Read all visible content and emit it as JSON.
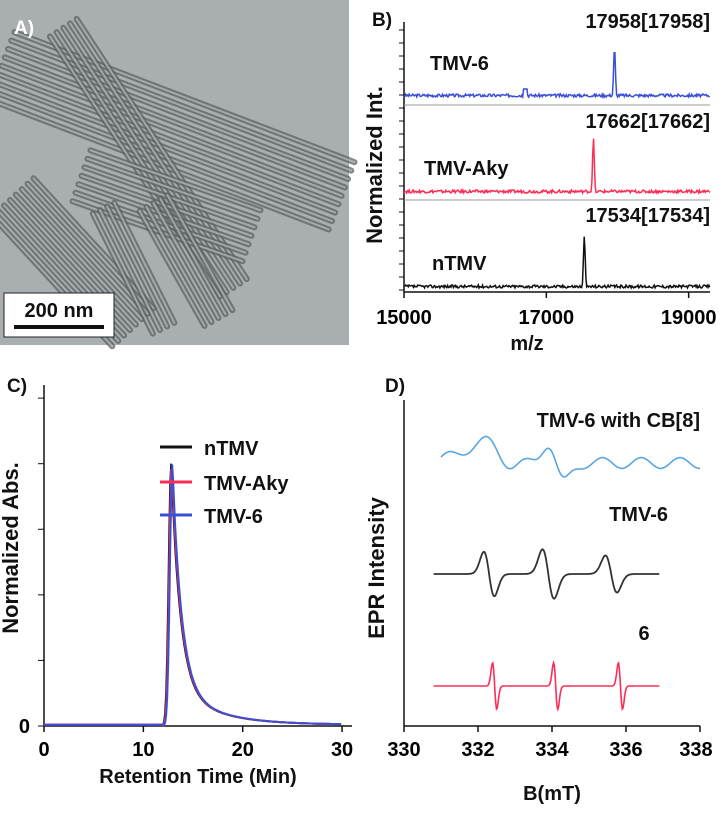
{
  "panel_labels": {
    "a": "A)",
    "b": "B)",
    "c": "C)",
    "d": "D)"
  },
  "micrograph": {
    "scale_bar_label": "200 nm",
    "background": "#a9aeb0",
    "rod_color": "#5b6062"
  },
  "colors": {
    "ntmv": "#111111",
    "aky": "#ff2d55",
    "tmv6": "#3b4fd6",
    "epr_top": "#5aa6e0"
  },
  "chart_data": [
    {
      "panel": "B",
      "type": "line",
      "title": "",
      "xlabel": "m/z",
      "ylabel": "Normalized Int.",
      "xlim": [
        15000,
        19300
      ],
      "xticks": [
        15000,
        17000,
        19000
      ],
      "series": [
        {
          "name": "TMV-6",
          "peak_mz": 17958,
          "peak_label": "17958[17958]",
          "offset": 2,
          "color": "#3b4fd6"
        },
        {
          "name": "TMV-Aky",
          "peak_mz": 17662,
          "peak_label": "17662[17662]",
          "offset": 1,
          "color": "#ff2d55"
        },
        {
          "name": "nTMV",
          "peak_mz": 17534,
          "peak_label": "17534[17534]",
          "offset": 0,
          "color": "#111111"
        }
      ]
    },
    {
      "panel": "C",
      "type": "line",
      "title": "",
      "xlabel": "Retention Time (Min)",
      "ylabel": "Normalized Abs.",
      "xlim": [
        0,
        31
      ],
      "xticks": [
        0,
        10,
        20,
        30
      ],
      "ylim": [
        0,
        1.3
      ],
      "yticks": [
        0
      ],
      "peak_time": 12.8,
      "peak_height": 1.0,
      "legend_position": "top-right",
      "series": [
        {
          "name": "nTMV",
          "color": "#111111"
        },
        {
          "name": "TMV-Aky",
          "color": "#ff2d55"
        },
        {
          "name": "TMV-6",
          "color": "#3b4fd6"
        }
      ]
    },
    {
      "panel": "D",
      "type": "line",
      "title": "",
      "xlabel": "B(mT)",
      "ylabel": "EPR Intensity",
      "xlim": [
        330,
        338
      ],
      "xticks": [
        330,
        332,
        334,
        336,
        338
      ],
      "series": [
        {
          "name": "TMV-6 with CB[8]",
          "color": "#5aa6e0"
        },
        {
          "name": "TMV-6",
          "color": "#333333"
        },
        {
          "name": "6",
          "color": "#ff2d55"
        }
      ]
    }
  ]
}
